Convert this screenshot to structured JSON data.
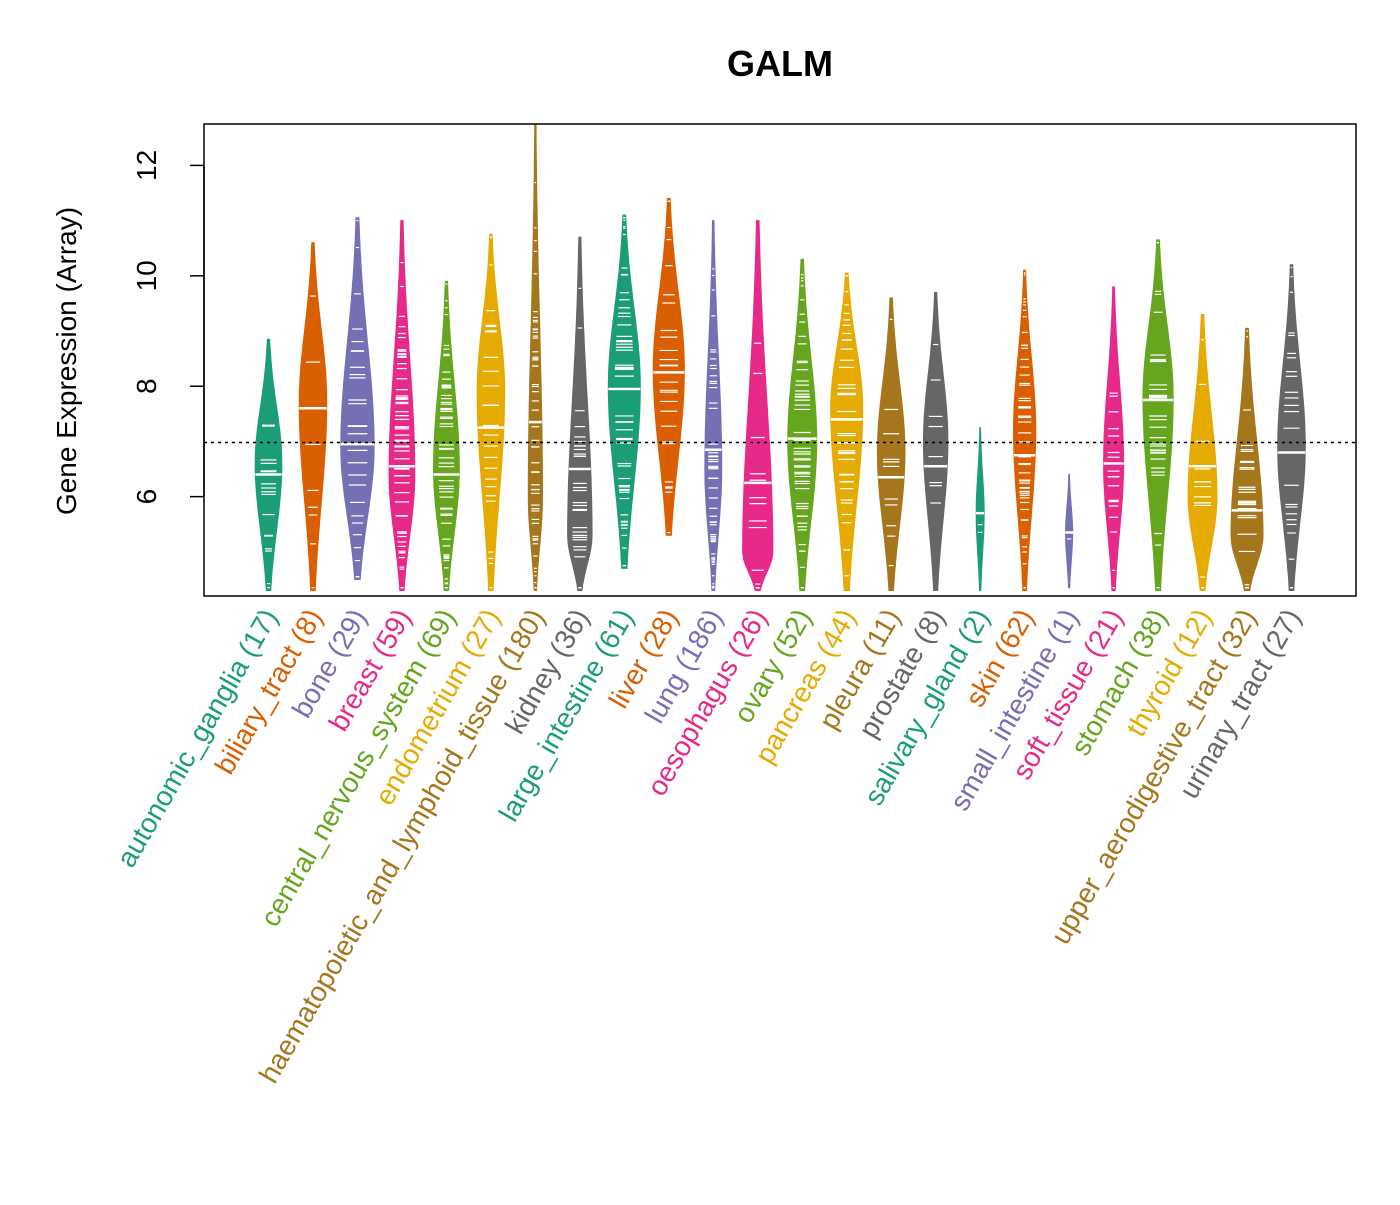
{
  "chart_data": {
    "type": "violin",
    "title": "GALM",
    "ylabel": "Gene Expression (Array)",
    "xlabel": "",
    "ylim": [
      4.2,
      12.75
    ],
    "yticks": [
      6,
      8,
      10,
      12
    ],
    "reference_line": 6.98,
    "groups": [
      {
        "name": "autonomic_ganglia",
        "count": "(17)",
        "color": "#1B9E77",
        "min": 4.3,
        "max": 8.85,
        "median": 6.4,
        "mode": 6.6,
        "width": 0.6
      },
      {
        "name": "biliary_tract",
        "count": "(8)",
        "color": "#D95F02",
        "min": 4.3,
        "max": 10.6,
        "median": 7.6,
        "mode": 7.7,
        "width": 0.62
      },
      {
        "name": "bone",
        "count": "(29)",
        "color": "#7570B3",
        "min": 4.5,
        "max": 11.05,
        "median": 6.95,
        "mode": 6.9,
        "width": 0.75
      },
      {
        "name": "breast",
        "count": "(59)",
        "color": "#E7298A",
        "min": 4.3,
        "max": 11.0,
        "median": 6.55,
        "mode": 6.4,
        "width": 0.58
      },
      {
        "name": "central_nervous_system",
        "count": "(69)",
        "color": "#66A61E",
        "min": 4.3,
        "max": 9.9,
        "median": 6.4,
        "mode": 6.5,
        "width": 0.58
      },
      {
        "name": "endometrium",
        "count": "(27)",
        "color": "#E6AB02",
        "min": 4.3,
        "max": 10.75,
        "median": 7.25,
        "mode": 7.9,
        "width": 0.62
      },
      {
        "name": "haematopoietic_and_lymphoid_tissue",
        "count": "(180)",
        "color": "#A6761D",
        "min": 4.3,
        "max": 12.75,
        "median": 7.35,
        "mode": 6.0,
        "width": 0.32
      },
      {
        "name": "kidney",
        "count": "(36)",
        "color": "#666666",
        "min": 4.3,
        "max": 10.7,
        "median": 6.5,
        "mode": 5.3,
        "width": 0.55
      },
      {
        "name": "large_intestine",
        "count": "(61)",
        "color": "#1B9E77",
        "min": 4.7,
        "max": 11.1,
        "median": 7.95,
        "mode": 8.0,
        "width": 0.72
      },
      {
        "name": "liver",
        "count": "(28)",
        "color": "#D95F02",
        "min": 5.3,
        "max": 11.4,
        "median": 8.25,
        "mode": 8.3,
        "width": 0.7
      },
      {
        "name": "lung",
        "count": "(186)",
        "color": "#7570B3",
        "min": 4.3,
        "max": 11.0,
        "median": 6.85,
        "mode": 6.5,
        "width": 0.38
      },
      {
        "name": "oesophagus",
        "count": "(26)",
        "color": "#E7298A",
        "min": 4.3,
        "max": 11.0,
        "median": 6.25,
        "mode": 5.0,
        "width": 0.68
      },
      {
        "name": "ovary",
        "count": "(52)",
        "color": "#66A61E",
        "min": 4.3,
        "max": 10.3,
        "median": 7.05,
        "mode": 7.0,
        "width": 0.65
      },
      {
        "name": "pancreas",
        "count": "(44)",
        "color": "#E6AB02",
        "min": 4.3,
        "max": 10.05,
        "median": 7.4,
        "mode": 7.6,
        "width": 0.72
      },
      {
        "name": "pleura",
        "count": "(11)",
        "color": "#A6761D",
        "min": 4.3,
        "max": 9.6,
        "median": 6.35,
        "mode": 6.8,
        "width": 0.62
      },
      {
        "name": "prostate",
        "count": "(8)",
        "color": "#666666",
        "min": 4.3,
        "max": 9.7,
        "median": 6.55,
        "mode": 7.0,
        "width": 0.55
      },
      {
        "name": "salivary_gland",
        "count": "(2)",
        "color": "#1B9E77",
        "min": 4.3,
        "max": 7.25,
        "median": 5.7,
        "mode": 5.7,
        "width": 0.18
      },
      {
        "name": "skin",
        "count": "(62)",
        "color": "#D95F02",
        "min": 4.3,
        "max": 10.1,
        "median": 6.75,
        "mode": 7.2,
        "width": 0.5
      },
      {
        "name": "small_intestine",
        "count": "(1)",
        "color": "#7570B3",
        "min": 4.35,
        "max": 6.4,
        "median": 5.35,
        "mode": 5.35,
        "width": 0.16
      },
      {
        "name": "soft_tissue",
        "count": "(21)",
        "color": "#E7298A",
        "min": 4.3,
        "max": 9.8,
        "median": 6.6,
        "mode": 6.6,
        "width": 0.45
      },
      {
        "name": "stomach",
        "count": "(38)",
        "color": "#66A61E",
        "min": 4.3,
        "max": 10.65,
        "median": 7.75,
        "mode": 7.8,
        "width": 0.68
      },
      {
        "name": "thyroid",
        "count": "(12)",
        "color": "#E6AB02",
        "min": 4.3,
        "max": 9.3,
        "median": 6.55,
        "mode": 6.0,
        "width": 0.65
      },
      {
        "name": "upper_aerodigestive_tract",
        "count": "(32)",
        "color": "#A6761D",
        "min": 4.3,
        "max": 9.05,
        "median": 5.75,
        "mode": 5.3,
        "width": 0.72
      },
      {
        "name": "urinary_tract",
        "count": "(27)",
        "color": "#666666",
        "min": 4.3,
        "max": 10.2,
        "median": 6.8,
        "mode": 6.9,
        "width": 0.62
      }
    ]
  }
}
